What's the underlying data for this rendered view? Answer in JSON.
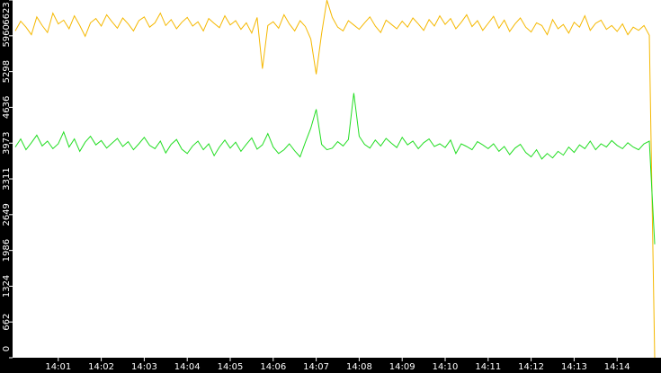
{
  "chart_data": {
    "type": "line",
    "categories": [
      null,
      null,
      null,
      null,
      null,
      null,
      null,
      null,
      "14:01",
      null,
      null,
      null,
      null,
      null,
      null,
      null,
      "14:02",
      null,
      null,
      null,
      null,
      null,
      null,
      null,
      "14:03",
      null,
      null,
      null,
      null,
      null,
      null,
      null,
      "14:04",
      null,
      null,
      null,
      null,
      null,
      null,
      null,
      "14:05",
      null,
      null,
      null,
      null,
      null,
      null,
      null,
      "14:06",
      null,
      null,
      null,
      null,
      null,
      null,
      null,
      "14:07",
      null,
      null,
      null,
      null,
      null,
      null,
      null,
      "14:08",
      null,
      null,
      null,
      null,
      null,
      null,
      null,
      "14:09",
      null,
      null,
      null,
      null,
      null,
      null,
      null,
      "14:10",
      null,
      null,
      null,
      null,
      null,
      null,
      null,
      "14:11",
      null,
      null,
      null,
      null,
      null,
      null,
      null,
      "14:12",
      null,
      null,
      null,
      null,
      null,
      null,
      null,
      "14:13",
      null,
      null,
      null,
      null,
      null,
      null,
      null,
      "14:14",
      null,
      null,
      null,
      null,
      null,
      null,
      null
    ],
    "series": [
      {
        "color": "#f5b800",
        "values": [
          6050,
          6230,
          6120,
          5980,
          6310,
          6150,
          6020,
          6380,
          6180,
          6250,
          6090,
          6330,
          6150,
          5950,
          6200,
          6280,
          6140,
          6350,
          6220,
          6100,
          6290,
          6180,
          6050,
          6240,
          6310,
          6120,
          6200,
          6380,
          6150,
          6260,
          6090,
          6210,
          6300,
          6140,
          6220,
          6050,
          6280,
          6190,
          6110,
          6330,
          6160,
          6240,
          6080,
          6200,
          6010,
          6300,
          5350,
          6150,
          6220,
          6100,
          6350,
          6180,
          6050,
          6240,
          6130,
          5900,
          5250,
          6000,
          6620,
          6300,
          6120,
          6050,
          6240,
          6160,
          6080,
          6200,
          6310,
          6140,
          6020,
          6250,
          6170,
          6090,
          6230,
          6120,
          6290,
          6180,
          6060,
          6260,
          6140,
          6330,
          6170,
          6280,
          6090,
          6210,
          6350,
          6130,
          6240,
          6060,
          6190,
          6320,
          6100,
          6250,
          6040,
          6180,
          6290,
          6120,
          6030,
          6200,
          6150,
          5980,
          6260,
          6090,
          6170,
          6010,
          6210,
          6120,
          6330,
          6060,
          6190,
          6250,
          6080,
          6150,
          6040,
          6180,
          5980,
          6120,
          6060,
          6150,
          5970,
          0
        ]
      },
      {
        "color": "#22dd22",
        "values": [
          3900,
          4050,
          3850,
          3980,
          4120,
          3920,
          4010,
          3870,
          3960,
          4180,
          3900,
          4050,
          3820,
          3990,
          4100,
          3940,
          4020,
          3880,
          3970,
          4060,
          3910,
          4000,
          3850,
          3960,
          4080,
          3930,
          3870,
          4010,
          3790,
          3950,
          4040,
          3860,
          3780,
          3920,
          4010,
          3850,
          3960,
          3740,
          3900,
          4030,
          3880,
          3990,
          3820,
          3950,
          4070,
          3860,
          3940,
          4150,
          3900,
          3780,
          3850,
          3960,
          3830,
          3720,
          3990,
          4250,
          4600,
          3950,
          3850,
          3880,
          4000,
          3920,
          4040,
          4900,
          4100,
          3950,
          3880,
          4030,
          3920,
          4060,
          3970,
          3890,
          4080,
          3940,
          4010,
          3870,
          3980,
          4050,
          3910,
          3960,
          3890,
          4030,
          3780,
          3960,
          3910,
          3850,
          4000,
          3940,
          3870,
          3960,
          3820,
          3910,
          3760,
          3880,
          3950,
          3800,
          3720,
          3850,
          3680,
          3780,
          3700,
          3820,
          3750,
          3900,
          3800,
          3940,
          3870,
          4010,
          3850,
          3960,
          3900,
          4020,
          3930,
          3870,
          3980,
          3900,
          3850,
          3960,
          4010,
          2100
        ]
      }
    ],
    "ylim": [
      0,
      6623
    ],
    "yticks": [
      0,
      662,
      1324,
      1986,
      2649,
      3311,
      3973,
      4636,
      5298,
      5960,
      6623
    ]
  }
}
